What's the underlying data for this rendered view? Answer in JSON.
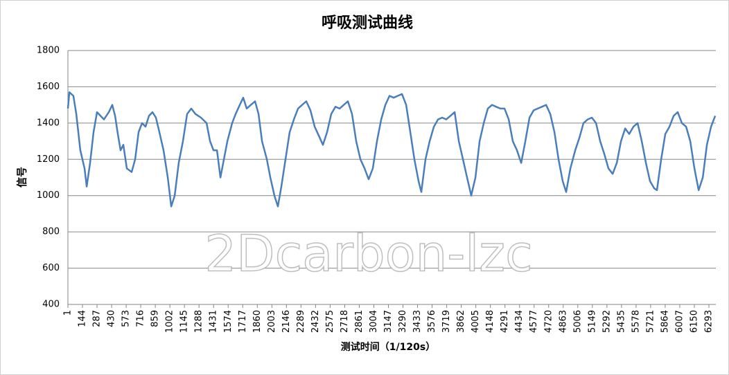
{
  "chart_data": {
    "type": "line",
    "title": "呼吸测试曲线",
    "y_label": "信号",
    "x_label": "测试时间（1/120s）",
    "watermark": "2Dcarbon-lzc",
    "color": "#4a7ebb",
    "grid": true,
    "xlim": [
      1,
      6361
    ],
    "ylim": [
      400,
      1800
    ],
    "yticks": [
      400,
      600,
      800,
      1000,
      1200,
      1400,
      1600,
      1800
    ],
    "xticks": [
      1,
      144,
      287,
      430,
      573,
      716,
      859,
      1002,
      1145,
      1288,
      1431,
      1574,
      1717,
      1860,
      2003,
      2146,
      2289,
      2432,
      2575,
      2718,
      2861,
      3004,
      3147,
      3290,
      3433,
      3576,
      3719,
      3862,
      4005,
      4148,
      4291,
      4434,
      4577,
      4720,
      4863,
      5006,
      5149,
      5292,
      5435,
      5578,
      5721,
      5864,
      6007,
      6150,
      6293
    ],
    "x": [
      1,
      15,
      55,
      83,
      123,
      164,
      185,
      219,
      253,
      287,
      321,
      355,
      402,
      436,
      464,
      491,
      518,
      545,
      579,
      627,
      661,
      695,
      729,
      763,
      797,
      831,
      865,
      899,
      940,
      981,
      1015,
      1049,
      1089,
      1130,
      1171,
      1212,
      1253,
      1307,
      1362,
      1396,
      1430,
      1464,
      1498,
      1532,
      1566,
      1613,
      1647,
      1688,
      1722,
      1756,
      1797,
      1838,
      1872,
      1906,
      1954,
      1988,
      2028,
      2062,
      2096,
      2137,
      2178,
      2219,
      2260,
      2300,
      2341,
      2382,
      2423,
      2464,
      2504,
      2545,
      2586,
      2627,
      2668,
      2709,
      2749,
      2790,
      2831,
      2872,
      2913,
      2953,
      2994,
      3035,
      3076,
      3117,
      3158,
      3198,
      3239,
      3280,
      3321,
      3362,
      3402,
      3443,
      3470,
      3511,
      3552,
      3593,
      3634,
      3675,
      3715,
      3756,
      3797,
      3838,
      3879,
      3919,
      3960,
      4001,
      4042,
      4083,
      4123,
      4164,
      4205,
      4246,
      4287,
      4328,
      4368,
      4409,
      4450,
      4491,
      4532,
      4573,
      4613,
      4654,
      4695,
      4736,
      4777,
      4817,
      4858,
      4892,
      4933,
      4981,
      5022,
      5062,
      5103,
      5144,
      5185,
      5226,
      5266,
      5307,
      5348,
      5389,
      5430,
      5471,
      5511,
      5552,
      5593,
      5634,
      5675,
      5715,
      5756,
      5783,
      5824,
      5865,
      5906,
      5947,
      5987,
      6028,
      6069,
      6110,
      6151,
      6192,
      6233,
      6273,
      6314,
      6355
    ],
    "values": [
      1480,
      1570,
      1550,
      1450,
      1250,
      1150,
      1050,
      1180,
      1350,
      1460,
      1440,
      1420,
      1460,
      1500,
      1440,
      1340,
      1250,
      1280,
      1150,
      1130,
      1200,
      1350,
      1400,
      1380,
      1440,
      1460,
      1430,
      1350,
      1250,
      1100,
      940,
      1000,
      1180,
      1300,
      1450,
      1480,
      1450,
      1430,
      1400,
      1300,
      1250,
      1250,
      1100,
      1200,
      1300,
      1400,
      1450,
      1500,
      1540,
      1480,
      1500,
      1520,
      1450,
      1300,
      1200,
      1100,
      1000,
      940,
      1050,
      1200,
      1350,
      1420,
      1480,
      1500,
      1520,
      1470,
      1380,
      1330,
      1280,
      1350,
      1450,
      1490,
      1480,
      1500,
      1520,
      1450,
      1300,
      1200,
      1150,
      1090,
      1150,
      1300,
      1420,
      1500,
      1550,
      1540,
      1550,
      1560,
      1500,
      1350,
      1200,
      1080,
      1020,
      1200,
      1300,
      1380,
      1420,
      1430,
      1420,
      1440,
      1460,
      1300,
      1200,
      1100,
      1000,
      1100,
      1300,
      1400,
      1480,
      1500,
      1490,
      1480,
      1480,
      1420,
      1300,
      1250,
      1180,
      1300,
      1430,
      1470,
      1480,
      1490,
      1500,
      1450,
      1350,
      1200,
      1080,
      1020,
      1150,
      1250,
      1320,
      1400,
      1420,
      1430,
      1400,
      1300,
      1230,
      1150,
      1120,
      1180,
      1300,
      1370,
      1340,
      1380,
      1400,
      1300,
      1180,
      1080,
      1040,
      1030,
      1200,
      1340,
      1380,
      1440,
      1460,
      1400,
      1380,
      1300,
      1150,
      1030,
      1100,
      1280,
      1380,
      1440
    ]
  }
}
